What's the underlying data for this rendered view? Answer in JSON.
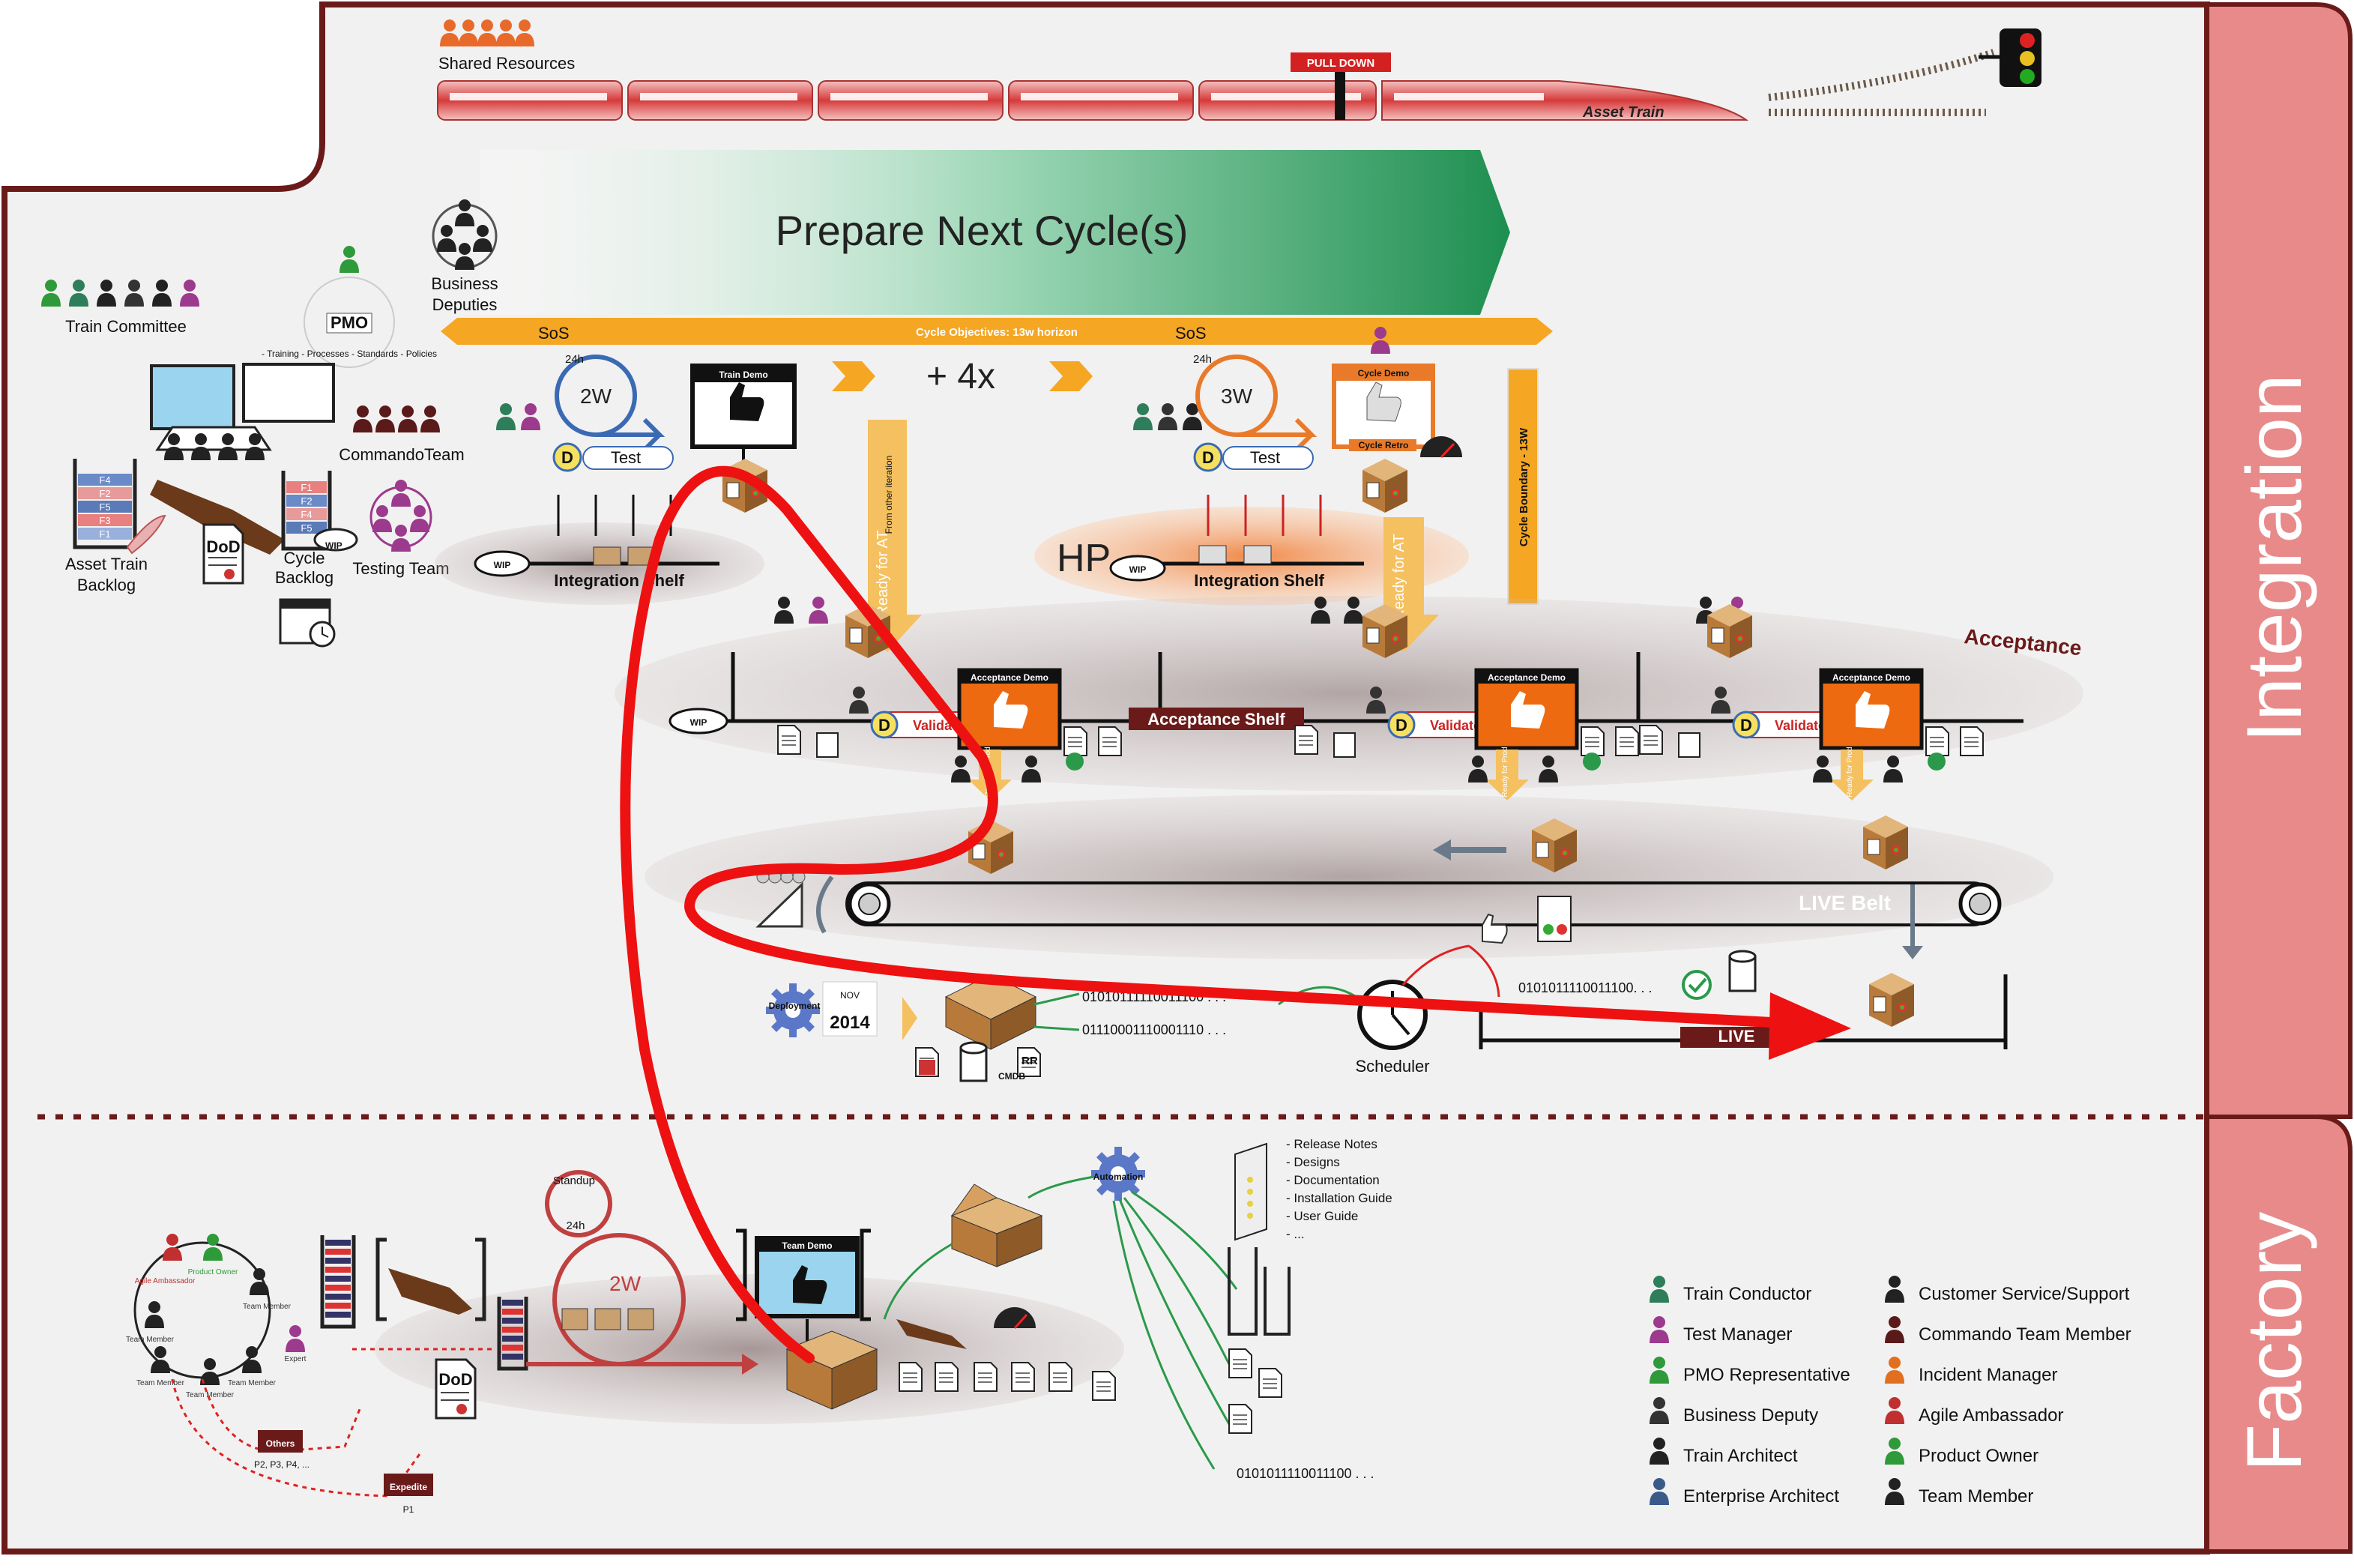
{
  "header": {
    "shared_resources": "Shared Resources",
    "pull_down": "PULL DOWN",
    "asset_train": "Asset Train"
  },
  "banner": {
    "prepare": "Prepare Next Cycle(s)",
    "business_deputies_1": "Business",
    "business_deputies_2": "Deputies",
    "cycle_objectives": "Cycle Objectives: 13w horizon",
    "sos_left": "SoS",
    "sos_right": "SoS",
    "repeat": "+ 4x",
    "cycle_boundary": "Cycle Boundary - 13W"
  },
  "left_panel": {
    "train_committee": "Train Committee",
    "pmo": "PMO",
    "pmo_ring": "- Training - Processes - Standards - Policies",
    "commando_team": "CommandoTeam",
    "testing_team": "Testing Team",
    "asset_backlog_1": "Asset Train",
    "asset_backlog_2": "Backlog",
    "cycle_backlog_1": "Cycle",
    "cycle_backlog_2": "Backlog",
    "backlog_items": [
      "F4",
      "F2",
      "F5",
      "F3",
      "F1"
    ],
    "cycle_items": [
      "F1",
      "F2",
      "F4",
      "F5"
    ],
    "dod": "DoD",
    "wip": "WIP"
  },
  "integration": {
    "cycle_left": "2W",
    "cycle_right": "3W",
    "h24_left": "24h",
    "h24_right": "24h",
    "d_badge": "D",
    "test_left": "Test",
    "test_right": "Test",
    "train_demo": "Train Demo",
    "cycle_demo": "Cycle Demo",
    "cycle_retro": "Cycle Retro",
    "integration_shelf_left": "Integration Shelf",
    "integration_shelf_right": "Integration Shelf",
    "hp": "HP",
    "wip_left": "WIP",
    "wip_right": "WIP",
    "from_other_iteration": "From other iteration",
    "ready_for_at": "Ready for AT"
  },
  "acceptance": {
    "title": "Acceptance",
    "shelf": "Acceptance Shelf",
    "demo": "Acceptance Demo",
    "validate": "Validate",
    "wip": "WIP",
    "ready_for_prod": "Ready for Prod"
  },
  "live": {
    "belt": "LIVE Belt",
    "live": "LIVE",
    "deployment": "Deployment",
    "nov": "NOV",
    "year": "2014",
    "binary_1": "01010111110011100 . . .",
    "binary_2": "01110001110001110 . . .",
    "binary_3": "0101011110011100. . .",
    "scheduler": "Scheduler",
    "rr": "RR",
    "cmdb": "CMDB"
  },
  "factory": {
    "standup": "Standup",
    "h24": "24h",
    "cycle": "2W",
    "team_demo": "Team Demo",
    "automation": "Automation",
    "dod": "DoD",
    "docs": [
      "- Release Notes",
      "- Designs",
      "- Documentation",
      "- Installation Guide",
      "- User Guide",
      "- ..."
    ],
    "binary": "0101011110011100 . . .",
    "others": "Others",
    "others_p": "P2, P3, P4, ...",
    "expedite": "Expedite",
    "expedite_p": "P1",
    "circle_roles": [
      "Agile Ambassador",
      "Product Owner",
      "Team Member",
      "Team Member",
      "Team Member",
      "Team Member",
      "Team Member",
      "Expert"
    ]
  },
  "side_tabs": {
    "integration": "Integration",
    "factory": "Factory"
  },
  "legend": {
    "left": [
      "Train Conductor",
      "Test Manager",
      "PMO Representative",
      "Business Deputy",
      "Train Architect",
      "Enterprise Architect"
    ],
    "right": [
      "Customer Service/Support",
      "Commando Team Member",
      "Incident Manager",
      "Agile Ambassador",
      "Product Owner",
      "Team Member"
    ],
    "left_colors": [
      "#2e7d5b",
      "#9c3a8e",
      "#2e9a3a",
      "#333333",
      "#222222",
      "#3a5a8a"
    ],
    "right_colors": [
      "#222222",
      "#5a1a1a",
      "#e07020",
      "#c03030",
      "#2e9a3a",
      "#222222"
    ]
  },
  "colors": {
    "frame": "#6b1a1a",
    "tab": "#e88a8a",
    "orange": "#f5a623",
    "flow_red": "#ee1111",
    "box_brown": "#b87a3a",
    "green_banner": "#23935a"
  }
}
